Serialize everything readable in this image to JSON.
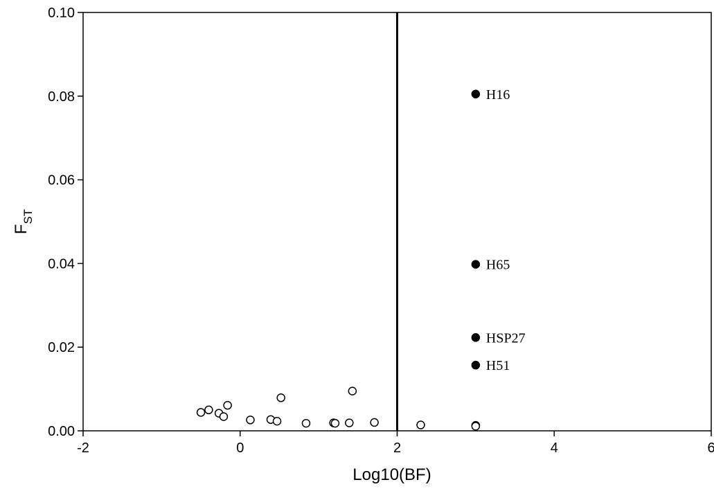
{
  "chart_data": {
    "type": "scatter",
    "title": "",
    "xlabel": "Log10(BF)",
    "ylabel_main": "F",
    "ylabel_sub": "ST",
    "xlim": [
      -2,
      6
    ],
    "ylim": [
      0,
      0.1
    ],
    "xticks": [
      -2,
      0,
      2,
      4,
      6
    ],
    "yticks": [
      0.0,
      0.02,
      0.04,
      0.06,
      0.08,
      0.1
    ],
    "xtick_labels": [
      "-2",
      "0",
      "2",
      "4",
      "6"
    ],
    "ytick_labels": [
      "0.00",
      "0.02",
      "0.04",
      "0.06",
      "0.08",
      "0.10"
    ],
    "grid": false,
    "threshold_x": 2,
    "series": [
      {
        "style": "open",
        "points": [
          {
            "x": -0.5,
            "y": 0.0044
          },
          {
            "x": -0.4,
            "y": 0.005
          },
          {
            "x": -0.27,
            "y": 0.0042
          },
          {
            "x": -0.21,
            "y": 0.0034
          },
          {
            "x": -0.16,
            "y": 0.0061
          },
          {
            "x": 0.13,
            "y": 0.0026
          },
          {
            "x": 0.39,
            "y": 0.0027
          },
          {
            "x": 0.47,
            "y": 0.0023
          },
          {
            "x": 0.52,
            "y": 0.0079
          },
          {
            "x": 0.84,
            "y": 0.0018
          },
          {
            "x": 1.19,
            "y": 0.0019
          },
          {
            "x": 1.21,
            "y": 0.0018
          },
          {
            "x": 1.39,
            "y": 0.0019
          },
          {
            "x": 1.43,
            "y": 0.0095
          },
          {
            "x": 1.71,
            "y": 0.002
          },
          {
            "x": 2.3,
            "y": 0.0014
          },
          {
            "x": 3.0,
            "y": 0.0013
          },
          {
            "x": 3.0,
            "y": 0.0011
          }
        ]
      },
      {
        "style": "filled",
        "points": [
          {
            "x": 3.0,
            "y": 0.0805,
            "label": "H16"
          },
          {
            "x": 3.0,
            "y": 0.0398,
            "label": "H65"
          },
          {
            "x": 3.0,
            "y": 0.0223,
            "label": "HSP27"
          },
          {
            "x": 3.0,
            "y": 0.0157,
            "label": "H51"
          }
        ]
      }
    ]
  }
}
